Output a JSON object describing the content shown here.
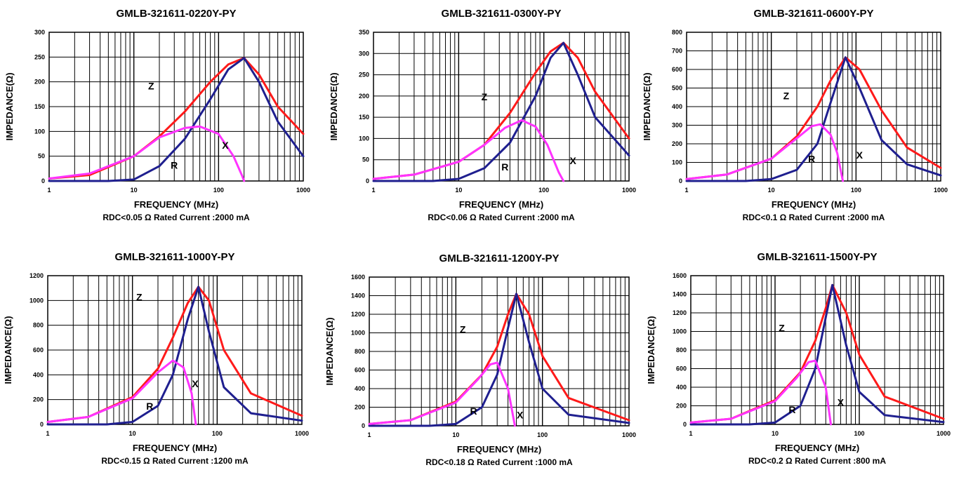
{
  "colors": {
    "Z": "#ff1a1a",
    "R": "#1f1f8f",
    "X": "#ff33ff",
    "grid": "#000000"
  },
  "chart_data": [
    {
      "type": "line",
      "title": "GMLB-321611-0220Y-PY",
      "xlabel": "FREQUENCY (MHz)",
      "ylabel": "IMPEDANCE(Ω)",
      "spec": "RDC<0.05 Ω Rated Current :2000 mA",
      "x_scale": "log",
      "xlim": [
        1,
        1000
      ],
      "ylim": [
        0,
        300
      ],
      "x_ticks": [
        "1",
        "10",
        "100",
        "1000"
      ],
      "y_ticks": [
        "0",
        "50",
        "100",
        "150",
        "200",
        "250",
        "300"
      ],
      "grid": true,
      "series_labels": [
        "Z",
        "R",
        "X"
      ],
      "series": [
        {
          "name": "Z",
          "x": [
            1,
            3,
            10,
            20,
            40,
            80,
            130,
            200,
            300,
            500,
            1000
          ],
          "values": [
            5,
            12,
            50,
            90,
            140,
            200,
            235,
            248,
            215,
            150,
            95
          ]
        },
        {
          "name": "R",
          "x": [
            1,
            5,
            10,
            20,
            40,
            80,
            130,
            200,
            300,
            500,
            1000
          ],
          "values": [
            0,
            0,
            3,
            30,
            85,
            165,
            225,
            248,
            200,
            120,
            50
          ]
        },
        {
          "name": "X",
          "x": [
            1,
            3,
            10,
            20,
            40,
            60,
            100,
            150,
            190,
            200
          ],
          "values": [
            5,
            15,
            50,
            88,
            107,
            110,
            95,
            50,
            10,
            0
          ]
        }
      ]
    },
    {
      "type": "line",
      "title": "GMLB-321611-0300Y-PY",
      "xlabel": "FREQUENCY (MHz)",
      "ylabel": "IMPEDANCE(Ω)",
      "spec": "RDC<0.06 Ω Rated Current :2000 mA",
      "x_scale": "log",
      "xlim": [
        1,
        1000
      ],
      "ylim": [
        0,
        350
      ],
      "x_ticks": [
        "1",
        "10",
        "100",
        "1000"
      ],
      "y_ticks": [
        "0",
        "50",
        "100",
        "150",
        "200",
        "250",
        "300",
        "350"
      ],
      "grid": true,
      "series_labels": [
        "Z",
        "R",
        "X"
      ],
      "series": [
        {
          "name": "Z",
          "x": [
            1,
            3,
            10,
            20,
            40,
            80,
            120,
            170,
            250,
            400,
            1000
          ],
          "values": [
            5,
            15,
            45,
            85,
            160,
            255,
            305,
            325,
            290,
            210,
            100
          ]
        },
        {
          "name": "R",
          "x": [
            1,
            5,
            10,
            20,
            40,
            80,
            120,
            170,
            250,
            400,
            1000
          ],
          "values": [
            0,
            0,
            5,
            30,
            90,
            200,
            290,
            325,
            250,
            150,
            60
          ]
        },
        {
          "name": "X",
          "x": [
            1,
            3,
            10,
            20,
            35,
            55,
            80,
            110,
            150,
            170
          ],
          "values": [
            5,
            15,
            45,
            85,
            125,
            143,
            128,
            85,
            20,
            0
          ]
        }
      ]
    },
    {
      "type": "line",
      "title": "GMLB-321611-0600Y-PY",
      "xlabel": "FREQUENCY (MHz)",
      "ylabel": "IMPEDANCE(Ω)",
      "spec": "RDC<0.1 Ω Rated Current :2000 mA",
      "x_scale": "log",
      "xlim": [
        1,
        1000
      ],
      "ylim": [
        0,
        800
      ],
      "x_ticks": [
        "1",
        "10",
        "100",
        "1000"
      ],
      "y_ticks": [
        "0",
        "100",
        "200",
        "300",
        "400",
        "500",
        "600",
        "700",
        "800"
      ],
      "grid": true,
      "series_labels": [
        "Z",
        "R",
        "X"
      ],
      "series": [
        {
          "name": "Z",
          "x": [
            1,
            3,
            10,
            20,
            35,
            50,
            75,
            110,
            200,
            400,
            1000
          ],
          "values": [
            10,
            35,
            120,
            240,
            400,
            540,
            665,
            600,
            380,
            180,
            70
          ]
        },
        {
          "name": "R",
          "x": [
            1,
            5,
            10,
            20,
            35,
            50,
            75,
            110,
            200,
            400,
            1000
          ],
          "values": [
            0,
            0,
            10,
            60,
            200,
            420,
            665,
            500,
            220,
            90,
            30
          ]
        },
        {
          "name": "X",
          "x": [
            1,
            3,
            10,
            20,
            30,
            38,
            50,
            60,
            70
          ],
          "values": [
            10,
            35,
            120,
            230,
            295,
            305,
            250,
            150,
            0
          ]
        }
      ]
    },
    {
      "type": "line",
      "title": "GMLB-321611-1000Y-PY",
      "xlabel": "FREQUENCY (MHz)",
      "ylabel": "IMPEDANCE(Ω)",
      "spec": "RDC<0.15 Ω Rated Current :1200 mA",
      "x_scale": "log",
      "xlim": [
        1,
        1000
      ],
      "ylim": [
        0,
        1200
      ],
      "x_ticks": [
        "1",
        "10",
        "100",
        "1000"
      ],
      "y_ticks": [
        "0",
        "200",
        "400",
        "600",
        "800",
        "1000",
        "1200"
      ],
      "grid": true,
      "series_labels": [
        "Z",
        "R",
        "X"
      ],
      "series": [
        {
          "name": "Z",
          "x": [
            1,
            3,
            10,
            20,
            30,
            45,
            60,
            80,
            120,
            250,
            1000
          ],
          "values": [
            20,
            60,
            220,
            450,
            700,
            980,
            1110,
            1000,
            600,
            250,
            70
          ]
        },
        {
          "name": "R",
          "x": [
            1,
            5,
            10,
            20,
            30,
            45,
            60,
            80,
            120,
            250,
            1000
          ],
          "values": [
            0,
            0,
            20,
            150,
            400,
            850,
            1110,
            750,
            300,
            90,
            30
          ]
        },
        {
          "name": "X",
          "x": [
            1,
            3,
            10,
            20,
            30,
            40,
            50,
            56
          ],
          "values": [
            20,
            60,
            210,
            420,
            515,
            460,
            250,
            0
          ]
        }
      ]
    },
    {
      "type": "line",
      "title": "GMLB-321611-1200Y-PY",
      "xlabel": "FREQUENCY (MHz)",
      "ylabel": "IMPEDANCE(Ω)",
      "spec": "RDC<0.18 Ω Rated Current :1000 mA",
      "x_scale": "log",
      "xlim": [
        1,
        1000
      ],
      "ylim": [
        0,
        1600
      ],
      "x_ticks": [
        "1",
        "10",
        "100",
        "1000"
      ],
      "y_ticks": [
        "0",
        "200",
        "400",
        "600",
        "800",
        "1000",
        "1200",
        "1400",
        "1600"
      ],
      "grid": true,
      "series_labels": [
        "Z",
        "R",
        "X"
      ],
      "series": [
        {
          "name": "Z",
          "x": [
            1,
            3,
            10,
            20,
            30,
            40,
            50,
            70,
            100,
            200,
            1000
          ],
          "values": [
            20,
            60,
            260,
            550,
            850,
            1200,
            1420,
            1200,
            750,
            300,
            60
          ]
        },
        {
          "name": "R",
          "x": [
            1,
            5,
            10,
            20,
            30,
            40,
            50,
            70,
            100,
            200,
            1000
          ],
          "values": [
            0,
            0,
            20,
            200,
            550,
            1050,
            1420,
            900,
            400,
            120,
            30
          ]
        },
        {
          "name": "X",
          "x": [
            1,
            3,
            10,
            18,
            25,
            30,
            40,
            48
          ],
          "values": [
            20,
            60,
            250,
            500,
            660,
            680,
            400,
            0
          ]
        }
      ]
    },
    {
      "type": "line",
      "title": "GMLB-321611-1500Y-PY",
      "xlabel": "FREQUENCY (MHz)",
      "ylabel": "IMPEDANCE(Ω)",
      "spec": "RDC<0.2 Ω Rated Current :800 mA",
      "x_scale": "log",
      "xlim": [
        1,
        1000
      ],
      "ylim": [
        0,
        1600
      ],
      "x_ticks": [
        "1",
        "10",
        "100",
        "1000"
      ],
      "y_ticks": [
        "0",
        "200",
        "400",
        "600",
        "800",
        "1000",
        "1200",
        "1400",
        "1600"
      ],
      "grid": true,
      "series_labels": [
        "Z",
        "R",
        "X"
      ],
      "series": [
        {
          "name": "Z",
          "x": [
            1,
            3,
            10,
            20,
            30,
            40,
            48,
            70,
            100,
            200,
            1000
          ],
          "values": [
            20,
            60,
            260,
            560,
            900,
            1250,
            1500,
            1200,
            750,
            300,
            60
          ]
        },
        {
          "name": "R",
          "x": [
            1,
            5,
            10,
            20,
            30,
            40,
            48,
            70,
            100,
            200,
            1000
          ],
          "values": [
            0,
            0,
            20,
            200,
            600,
            1150,
            1500,
            850,
            350,
            100,
            25
          ]
        },
        {
          "name": "X",
          "x": [
            1,
            3,
            10,
            18,
            25,
            30,
            40,
            46
          ],
          "values": [
            20,
            60,
            250,
            500,
            670,
            685,
            400,
            0
          ]
        }
      ]
    }
  ]
}
